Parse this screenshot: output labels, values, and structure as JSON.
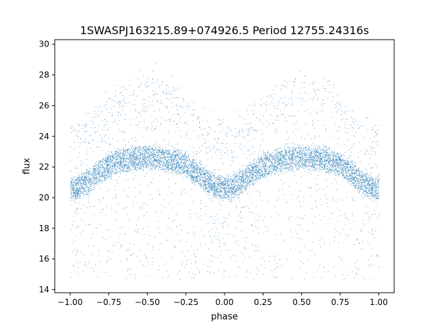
{
  "chart_data": {
    "type": "scatter",
    "title": "1SWASPJ163215.89+074926.5 Period 12755.24316s",
    "xlabel": "phase",
    "ylabel": "flux",
    "xlim": [
      -1.1,
      1.1
    ],
    "ylim": [
      13.8,
      30.3
    ],
    "xticks": [
      -1.0,
      -0.75,
      -0.5,
      -0.25,
      0.0,
      0.25,
      0.5,
      0.75,
      1.0
    ],
    "xtick_labels": [
      "−1.00",
      "−0.75",
      "−0.50",
      "−0.25",
      "0.00",
      "0.25",
      "0.50",
      "0.75",
      "1.00"
    ],
    "yticks": [
      14,
      16,
      18,
      20,
      22,
      24,
      26,
      28,
      30
    ],
    "ytick_labels": [
      "14",
      "16",
      "18",
      "20",
      "22",
      "24",
      "26",
      "28",
      "30"
    ],
    "grid": false,
    "legend": "none",
    "marker_color": "#1f77b4",
    "series": [
      {
        "phase_range": [
          -1.0,
          1.0
        ],
        "main_band": {
          "mean_flux": 21.6,
          "amplitude": 1.0,
          "band_halfwidth": 0.75,
          "min_phase": [
            -1.0,
            0.0,
            1.0
          ],
          "max_phase": [
            -0.42,
            0.6
          ],
          "min_flux": 20.6,
          "max_flux": 22.6
        },
        "upper_envelope": {
          "peak_flux": 28.0,
          "trough_flux": 24.9
        },
        "scatter_flux_range": [
          14.7,
          29.5
        ]
      }
    ]
  }
}
